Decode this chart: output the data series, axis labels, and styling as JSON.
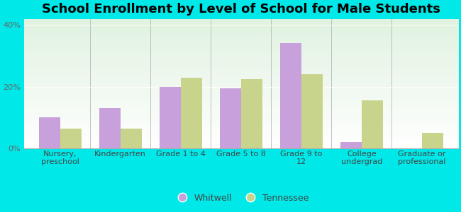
{
  "title": "School Enrollment by Level of School for Male Students",
  "categories": [
    "Nursery,\npreschool",
    "Kindergarten",
    "Grade 1 to 4",
    "Grade 5 to 8",
    "Grade 9 to\n12",
    "College\nundergrad",
    "Graduate or\nprofessional"
  ],
  "whitwell": [
    10,
    13,
    20,
    19.5,
    34,
    2,
    0
  ],
  "tennessee": [
    6.5,
    6.5,
    23,
    22.5,
    24,
    15.5,
    5
  ],
  "whitwell_color": "#c8a0dc",
  "tennessee_color": "#c8d48c",
  "ylim": [
    0,
    42
  ],
  "yticks": [
    0,
    20,
    40
  ],
  "ytick_labels": [
    "0%",
    "20%",
    "40%"
  ],
  "background_color": "#00e8e8",
  "legend_labels": [
    "Whitwell",
    "Tennessee"
  ],
  "title_fontsize": 13,
  "tick_fontsize": 8,
  "legend_fontsize": 9,
  "bar_width": 0.35
}
